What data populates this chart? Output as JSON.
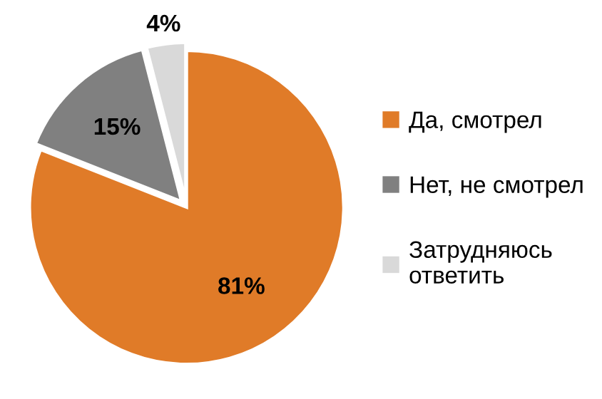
{
  "chart_data": {
    "type": "pie",
    "categories": [
      "Да, смотрел",
      "Нет, не смотрел",
      "Затрудняюсь\nответить"
    ],
    "values": [
      81,
      15,
      4
    ],
    "colors": [
      "#e07b28",
      "#808080",
      "#d9d9d9"
    ],
    "value_labels": [
      "81%",
      "15%",
      "4%"
    ],
    "legend": "right"
  }
}
